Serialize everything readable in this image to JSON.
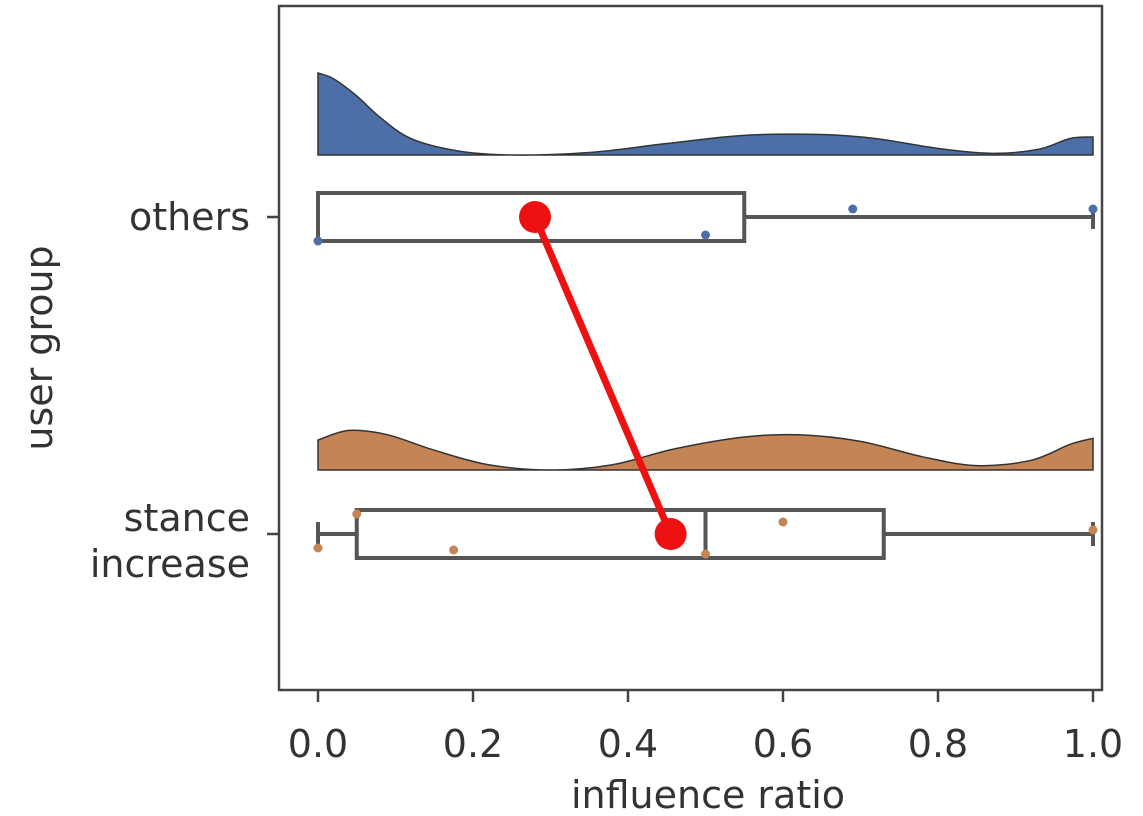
{
  "chart_data": {
    "type": "raincloud",
    "title": "",
    "xlabel": "influence ratio",
    "ylabel": "user group",
    "xlim": [
      -0.1,
      1.05
    ],
    "xticks": [
      0.0,
      0.2,
      0.4,
      0.6,
      0.8,
      1.0
    ],
    "xtick_labels": [
      "0.0",
      "0.2",
      "0.4",
      "0.6",
      "0.8",
      "1.0"
    ],
    "grid": false,
    "groups": [
      {
        "label": "others",
        "color": "#4c6fa8",
        "density": {
          "x": [
            0.0,
            0.02,
            0.05,
            0.08,
            0.12,
            0.18,
            0.25,
            0.35,
            0.45,
            0.55,
            0.65,
            0.72,
            0.8,
            0.87,
            0.93,
            0.97,
            1.0
          ],
          "y": [
            1.0,
            0.93,
            0.72,
            0.46,
            0.2,
            0.05,
            0.0,
            0.03,
            0.14,
            0.24,
            0.25,
            0.2,
            0.08,
            0.02,
            0.07,
            0.2,
            0.22
          ]
        },
        "box": {
          "min": 0.0,
          "q1": 0.0,
          "median": 0.0,
          "q3": 0.55,
          "max": 1.0
        },
        "mean": 0.28,
        "points": [
          {
            "x": 0.0,
            "y": -0.6
          },
          {
            "x": 0.5,
            "y": -0.45
          },
          {
            "x": 0.69,
            "y": 0.2
          },
          {
            "x": 1.0,
            "y": 0.2
          }
        ]
      },
      {
        "label": "stance increase",
        "color": "#c58456",
        "density": {
          "x": [
            0.0,
            0.04,
            0.09,
            0.15,
            0.22,
            0.3,
            0.38,
            0.46,
            0.55,
            0.62,
            0.7,
            0.78,
            0.85,
            0.92,
            0.97,
            1.0
          ],
          "y": [
            0.68,
            0.9,
            0.8,
            0.45,
            0.12,
            0.0,
            0.12,
            0.48,
            0.75,
            0.8,
            0.65,
            0.3,
            0.1,
            0.22,
            0.58,
            0.72
          ]
        },
        "box": {
          "min": 0.0,
          "q1": 0.05,
          "median": 0.5,
          "q3": 0.73,
          "max": 1.0
        },
        "mean": 0.455,
        "points": [
          {
            "x": 0.0,
            "y": -0.35
          },
          {
            "x": 0.05,
            "y": 0.5
          },
          {
            "x": 0.175,
            "y": -0.4
          },
          {
            "x": 0.5,
            "y": -0.5
          },
          {
            "x": 0.6,
            "y": 0.3
          },
          {
            "x": 1.0,
            "y": 0.1
          }
        ]
      }
    ],
    "mean_line_color": "#ee1111",
    "box_edge_color": "#555555"
  }
}
